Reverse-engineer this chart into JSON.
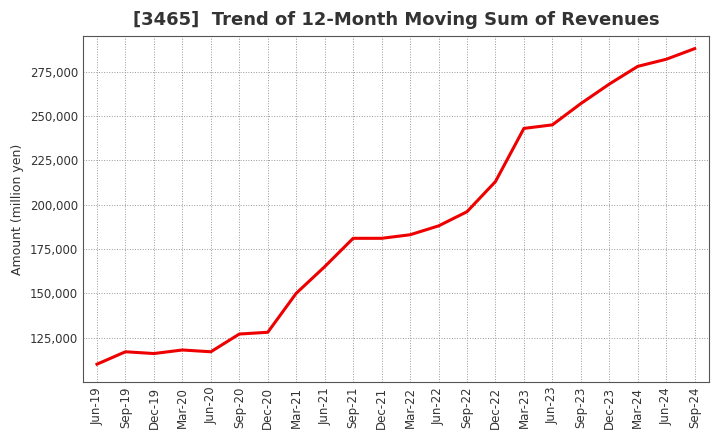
{
  "title": "[3465]  Trend of 12-Month Moving Sum of Revenues",
  "ylabel": "Amount (million yen)",
  "background_color": "#ffffff",
  "plot_bg_color": "#ffffff",
  "line_color": "#ee0000",
  "grid_color": "#999999",
  "x_labels": [
    "Jun-19",
    "Sep-19",
    "Dec-19",
    "Mar-20",
    "Jun-20",
    "Sep-20",
    "Dec-20",
    "Mar-21",
    "Jun-21",
    "Sep-21",
    "Dec-21",
    "Mar-22",
    "Jun-22",
    "Sep-22",
    "Dec-22",
    "Mar-23",
    "Jun-23",
    "Sep-23",
    "Dec-23",
    "Mar-24",
    "Jun-24",
    "Sep-24"
  ],
  "values": [
    110000,
    117000,
    116000,
    118000,
    117000,
    127000,
    128000,
    150000,
    165000,
    181000,
    181000,
    183000,
    188000,
    196000,
    213000,
    243000,
    245000,
    257000,
    268000,
    278000,
    282000,
    288000
  ],
  "ylim_min": 100000,
  "ylim_max": 295000,
  "yticks": [
    125000,
    150000,
    175000,
    200000,
    225000,
    250000,
    275000
  ],
  "title_fontsize": 13,
  "axis_label_fontsize": 9,
  "tick_fontsize": 8.5
}
